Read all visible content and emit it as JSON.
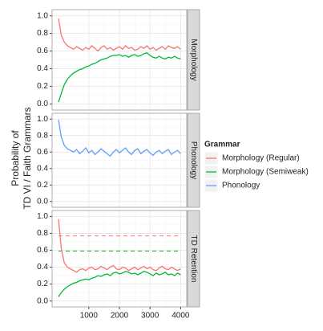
{
  "chart_data": {
    "type": "line",
    "ylabel": [
      "Probability of",
      "TD VI / Faith Grammars"
    ],
    "legend_title": "Grammar",
    "legend": [
      {
        "name": "Morphology (Regular)",
        "color": "#F8766D"
      },
      {
        "name": "Morphology (Semiweak)",
        "color": "#00BA38"
      },
      {
        "name": "Phonology",
        "color": "#619CFF"
      }
    ],
    "grid": true,
    "x": [
      10,
      100,
      200,
      300,
      400,
      500,
      600,
      700,
      800,
      900,
      1000,
      1100,
      1200,
      1300,
      1400,
      1500,
      1600,
      1700,
      1800,
      1900,
      2000,
      2100,
      2200,
      2300,
      2400,
      2500,
      2600,
      2700,
      2800,
      2900,
      3000,
      3100,
      3200,
      3300,
      3400,
      3500,
      3600,
      3700,
      3800,
      3900,
      4000
    ],
    "xlim": [
      -200,
      4200
    ],
    "xticks": [
      1000,
      2000,
      3000,
      4000
    ],
    "ylim": [
      -0.07,
      1.07
    ],
    "yticks": [
      {
        "value": 0,
        "label": "0.0"
      },
      {
        "value": 0.2,
        "label": "0.2"
      },
      {
        "value": 0.4,
        "label": "0.4"
      },
      {
        "value": 0.6,
        "label": "0.6"
      },
      {
        "value": 0.8,
        "label": "0.8"
      },
      {
        "value": 1,
        "label": "1.0"
      }
    ],
    "facets": [
      {
        "label": "Morphology",
        "series": [
          {
            "color": "#F8766D",
            "values": [
              0.97,
              0.78,
              0.7,
              0.66,
              0.64,
              0.62,
              0.65,
              0.63,
              0.61,
              0.64,
              0.62,
              0.66,
              0.63,
              0.6,
              0.64,
              0.66,
              0.62,
              0.64,
              0.61,
              0.63,
              0.65,
              0.62,
              0.66,
              0.63,
              0.64,
              0.61,
              0.62,
              0.65,
              0.63,
              0.66,
              0.62,
              0.64,
              0.61,
              0.63,
              0.65,
              0.62,
              0.66,
              0.64,
              0.63,
              0.65,
              0.62
            ]
          },
          {
            "color": "#00BA38",
            "values": [
              0.02,
              0.12,
              0.22,
              0.28,
              0.32,
              0.35,
              0.37,
              0.39,
              0.4,
              0.42,
              0.43,
              0.45,
              0.46,
              0.48,
              0.5,
              0.51,
              0.52,
              0.54,
              0.55,
              0.55,
              0.56,
              0.54,
              0.55,
              0.53,
              0.55,
              0.56,
              0.54,
              0.55,
              0.57,
              0.58,
              0.55,
              0.53,
              0.52,
              0.54,
              0.52,
              0.51,
              0.53,
              0.52,
              0.54,
              0.52,
              0.51
            ]
          }
        ]
      },
      {
        "label": "Phonology",
        "series": [
          {
            "color": "#619CFF",
            "values": [
              0.99,
              0.78,
              0.68,
              0.64,
              0.62,
              0.6,
              0.63,
              0.58,
              0.61,
              0.65,
              0.59,
              0.62,
              0.57,
              0.6,
              0.64,
              0.61,
              0.58,
              0.55,
              0.6,
              0.63,
              0.59,
              0.62,
              0.65,
              0.6,
              0.57,
              0.62,
              0.64,
              0.58,
              0.61,
              0.63,
              0.59,
              0.56,
              0.6,
              0.62,
              0.58,
              0.61,
              0.63,
              0.57,
              0.6,
              0.62,
              0.58
            ]
          }
        ]
      },
      {
        "label": "TD Retention",
        "series": [
          {
            "color": "#F8766D",
            "values": [
              0.97,
              0.62,
              0.45,
              0.4,
              0.38,
              0.36,
              0.34,
              0.37,
              0.38,
              0.36,
              0.39,
              0.4,
              0.37,
              0.38,
              0.41,
              0.39,
              0.37,
              0.4,
              0.42,
              0.38,
              0.37,
              0.4,
              0.39,
              0.36,
              0.38,
              0.4,
              0.37,
              0.39,
              0.41,
              0.38,
              0.4,
              0.37,
              0.36,
              0.39,
              0.41,
              0.38,
              0.37,
              0.4,
              0.38,
              0.36,
              0.38
            ]
          },
          {
            "color": "#00BA38",
            "values": [
              0.05,
              0.1,
              0.14,
              0.17,
              0.19,
              0.21,
              0.22,
              0.24,
              0.25,
              0.26,
              0.25,
              0.27,
              0.28,
              0.3,
              0.29,
              0.31,
              0.32,
              0.3,
              0.33,
              0.34,
              0.32,
              0.33,
              0.35,
              0.34,
              0.32,
              0.33,
              0.31,
              0.33,
              0.35,
              0.34,
              0.32,
              0.3,
              0.33,
              0.31,
              0.32,
              0.34,
              0.31,
              0.32,
              0.3,
              0.33,
              0.31
            ]
          }
        ],
        "reference_lines": [
          {
            "value": 0.77,
            "color": "#F8766D"
          },
          {
            "value": 0.59,
            "color": "#00BA38"
          }
        ]
      }
    ]
  }
}
